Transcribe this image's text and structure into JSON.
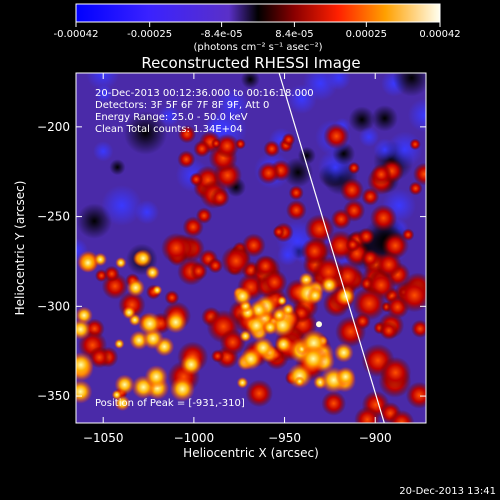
{
  "colorbar": {
    "ticks": [
      "-0.00042",
      "-0.00025",
      "-8.4e-05",
      "8.4e-05",
      "0.00025",
      "0.00042"
    ],
    "tick_values": [
      -0.00042,
      -0.00025,
      -8.4e-05,
      8.4e-05,
      0.00025,
      0.00042
    ],
    "range": [
      -0.00042,
      0.00042
    ],
    "units_label": "(photons cm⁻² s⁻¹ asec⁻²)"
  },
  "chart_data": {
    "type": "heatmap",
    "title": "Reconstructed RHESSI Image",
    "xlabel": "Heliocentric X (arcsec)",
    "ylabel": "Heliocentric Y (arcsec)",
    "xlim": [
      -1065,
      -872
    ],
    "ylim": [
      -365,
      -170
    ],
    "x_ticks": [
      -1050,
      -1000,
      -950,
      -900
    ],
    "y_ticks": [
      -200,
      -250,
      -300,
      -350
    ],
    "x_tick_labels": [
      "−1050",
      "−1000",
      "−950",
      "−900"
    ],
    "y_tick_labels": [
      "−200",
      "−250",
      "−300",
      "−350"
    ],
    "annotations": [
      "20-Dec-2013 00:12:36.000 to 00:16:18.000",
      "Detectors: 3F 5F 6F 7F 8F 9F, Att 0",
      "Energy Range: 25.0 - 50.0 keV",
      "Clean     Total counts: 1.34E+04"
    ],
    "peak_label": "Position of Peak = [-931,-310]",
    "peak": [
      -931,
      -310
    ],
    "grid": false,
    "limb_line": [
      [
        -953,
        -170
      ],
      [
        -895,
        -365
      ]
    ]
  },
  "footer": {
    "timestamp": "20-Dec-2013 13:41"
  }
}
